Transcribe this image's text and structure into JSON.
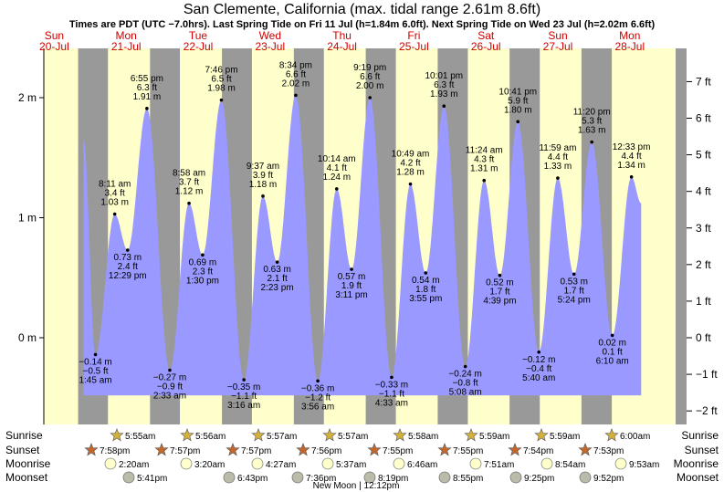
{
  "title": "San Clemente, California (max. tidal range 2.61m 8.6ft)",
  "subtitle": "Times are PDT (UTC −7.0hrs). Last Spring Tide on Fri 11 Jul (h=1.84m 6.0ft). Next Spring Tide on Wed 23 Jul (h=2.02m 6.6ft)",
  "colors": {
    "day_bg": "#ffffcc",
    "night_bg": "#999999",
    "edge_bg": "#999999",
    "tide_fill": "#9999ff",
    "day_label": "#d00000"
  },
  "days": [
    {
      "dow": "Sun",
      "date": "20-Jul"
    },
    {
      "dow": "Mon",
      "date": "21-Jul"
    },
    {
      "dow": "Tue",
      "date": "22-Jul"
    },
    {
      "dow": "Wed",
      "date": "23-Jul"
    },
    {
      "dow": "Thu",
      "date": "24-Jul"
    },
    {
      "dow": "Fri",
      "date": "25-Jul"
    },
    {
      "dow": "Sat",
      "date": "26-Jul"
    },
    {
      "dow": "Sun",
      "date": "27-Jul"
    },
    {
      "dow": "Mon",
      "date": "28-Jul"
    }
  ],
  "chart_data": {
    "type": "area",
    "title": "San Clemente, California (max. tidal range 2.61m 8.6ft)",
    "y_left_unit": "m",
    "y_right_unit": "ft",
    "y_left_ticks": [
      {
        "v": 2,
        "label": "2 m"
      },
      {
        "v": 1,
        "label": "1 m"
      },
      {
        "v": 0,
        "label": "0 m"
      }
    ],
    "y_right_ticks": [
      {
        "v": 7,
        "label": "7 ft"
      },
      {
        "v": 6,
        "label": "6 ft"
      },
      {
        "v": 5,
        "label": "5 ft"
      },
      {
        "v": 4,
        "label": "4 ft"
      },
      {
        "v": 3,
        "label": "3 ft"
      },
      {
        "v": 2,
        "label": "2 ft"
      },
      {
        "v": 1,
        "label": "1 ft"
      },
      {
        "v": 0,
        "label": "0 ft"
      },
      {
        "v": -1,
        "label": "−1 ft"
      },
      {
        "v": -2,
        "label": "−2 ft"
      }
    ],
    "ylim_m": [
      -0.55,
      2.28
    ],
    "start_value_m": 1.65,
    "extremes": [
      {
        "day": 1,
        "time": "1:45 am",
        "h_m": "−0.14 m",
        "h_ft": "−0.5 ft",
        "hours": 1.75,
        "m": -0.14,
        "type": "low"
      },
      {
        "day": 1,
        "time": "8:11 am",
        "h_m": "1.03 m",
        "h_ft": "3.4 ft",
        "hours": 8.18,
        "m": 1.03,
        "type": "high"
      },
      {
        "day": 1,
        "time": "12:29 pm",
        "h_m": "0.73 m",
        "h_ft": "2.4 ft",
        "hours": 12.48,
        "m": 0.73,
        "type": "low"
      },
      {
        "day": 1,
        "time": "6:55 pm",
        "h_m": "1.91 m",
        "h_ft": "6.3 ft",
        "hours": 18.92,
        "m": 1.91,
        "type": "high"
      },
      {
        "day": 2,
        "time": "2:33 am",
        "h_m": "−0.27 m",
        "h_ft": "−0.9 ft",
        "hours": 2.55,
        "m": -0.27,
        "type": "low"
      },
      {
        "day": 2,
        "time": "8:58 am",
        "h_m": "1.12 m",
        "h_ft": "3.7 ft",
        "hours": 8.97,
        "m": 1.12,
        "type": "high"
      },
      {
        "day": 2,
        "time": "1:30 pm",
        "h_m": "0.69 m",
        "h_ft": "2.3 ft",
        "hours": 13.5,
        "m": 0.69,
        "type": "low"
      },
      {
        "day": 2,
        "time": "7:46 pm",
        "h_m": "1.98 m",
        "h_ft": "6.5 ft",
        "hours": 19.77,
        "m": 1.98,
        "type": "high"
      },
      {
        "day": 3,
        "time": "3:16 am",
        "h_m": "−0.35 m",
        "h_ft": "−1.1 ft",
        "hours": 3.27,
        "m": -0.35,
        "type": "low"
      },
      {
        "day": 3,
        "time": "9:37 am",
        "h_m": "1.18 m",
        "h_ft": "3.9 ft",
        "hours": 9.62,
        "m": 1.18,
        "type": "high"
      },
      {
        "day": 3,
        "time": "2:23 pm",
        "h_m": "0.63 m",
        "h_ft": "2.1 ft",
        "hours": 14.38,
        "m": 0.63,
        "type": "low"
      },
      {
        "day": 3,
        "time": "8:34 pm",
        "h_m": "2.02 m",
        "h_ft": "6.6 ft",
        "hours": 20.57,
        "m": 2.02,
        "type": "high"
      },
      {
        "day": 4,
        "time": "3:56 am",
        "h_m": "−0.36 m",
        "h_ft": "−1.2 ft",
        "hours": 3.93,
        "m": -0.36,
        "type": "low"
      },
      {
        "day": 4,
        "time": "10:14 am",
        "h_m": "1.24 m",
        "h_ft": "4.1 ft",
        "hours": 10.23,
        "m": 1.24,
        "type": "high"
      },
      {
        "day": 4,
        "time": "3:11 pm",
        "h_m": "0.57 m",
        "h_ft": "1.9 ft",
        "hours": 15.18,
        "m": 0.57,
        "type": "low"
      },
      {
        "day": 4,
        "time": "9:19 pm",
        "h_m": "2.00 m",
        "h_ft": "6.6 ft",
        "hours": 21.32,
        "m": 2.0,
        "type": "high"
      },
      {
        "day": 5,
        "time": "4:33 am",
        "h_m": "−0.33 m",
        "h_ft": "−1.1 ft",
        "hours": 4.55,
        "m": -0.33,
        "type": "low"
      },
      {
        "day": 5,
        "time": "10:49 am",
        "h_m": "1.28 m",
        "h_ft": "4.2 ft",
        "hours": 10.82,
        "m": 1.28,
        "type": "high"
      },
      {
        "day": 5,
        "time": "3:55 pm",
        "h_m": "0.54 m",
        "h_ft": "1.8 ft",
        "hours": 15.92,
        "m": 0.54,
        "type": "low"
      },
      {
        "day": 5,
        "time": "10:01 pm",
        "h_m": "1.93 m",
        "h_ft": "6.3 ft",
        "hours": 22.02,
        "m": 1.93,
        "type": "high"
      },
      {
        "day": 6,
        "time": "5:08 am",
        "h_m": "−0.24 m",
        "h_ft": "−0.8 ft",
        "hours": 5.13,
        "m": -0.24,
        "type": "low"
      },
      {
        "day": 6,
        "time": "11:24 am",
        "h_m": "1.31 m",
        "h_ft": "4.3 ft",
        "hours": 11.4,
        "m": 1.31,
        "type": "high"
      },
      {
        "day": 6,
        "time": "4:39 pm",
        "h_m": "0.52 m",
        "h_ft": "1.7 ft",
        "hours": 16.65,
        "m": 0.52,
        "type": "low"
      },
      {
        "day": 6,
        "time": "10:41 pm",
        "h_m": "1.80 m",
        "h_ft": "5.9 ft",
        "hours": 22.68,
        "m": 1.8,
        "type": "high"
      },
      {
        "day": 7,
        "time": "5:40 am",
        "h_m": "−0.12 m",
        "h_ft": "−0.4 ft",
        "hours": 5.67,
        "m": -0.12,
        "type": "low"
      },
      {
        "day": 7,
        "time": "11:59 am",
        "h_m": "1.33 m",
        "h_ft": "4.4 ft",
        "hours": 11.98,
        "m": 1.33,
        "type": "high"
      },
      {
        "day": 7,
        "time": "5:24 pm",
        "h_m": "0.53 m",
        "h_ft": "1.7 ft",
        "hours": 17.4,
        "m": 0.53,
        "type": "low"
      },
      {
        "day": 7,
        "time": "11:20 pm",
        "h_m": "1.63 m",
        "h_ft": "5.3 ft",
        "hours": 23.33,
        "m": 1.63,
        "type": "high"
      },
      {
        "day": 8,
        "time": "6:10 am",
        "h_m": "0.02 m",
        "h_ft": "0.1 ft",
        "hours": 6.17,
        "m": 0.02,
        "type": "low"
      },
      {
        "day": 8,
        "time": "12:33 pm",
        "h_m": "1.34 m",
        "h_ft": "4.4 ft",
        "hours": 12.55,
        "m": 1.34,
        "type": "high"
      }
    ],
    "end_value_m": 1.12
  },
  "rows": {
    "sunrise_label": "Sunrise",
    "sunset_label": "Sunset",
    "moonrise_label": "Moonrise",
    "moonset_label": "Moonset",
    "sunrise": [
      {
        "day": 1,
        "time": "5:55am",
        "hours": 5.92
      },
      {
        "day": 2,
        "time": "5:56am",
        "hours": 5.93
      },
      {
        "day": 3,
        "time": "5:57am",
        "hours": 5.95
      },
      {
        "day": 4,
        "time": "5:57am",
        "hours": 5.95
      },
      {
        "day": 5,
        "time": "5:58am",
        "hours": 5.97
      },
      {
        "day": 6,
        "time": "5:59am",
        "hours": 5.98
      },
      {
        "day": 7,
        "time": "5:59am",
        "hours": 5.98
      },
      {
        "day": 8,
        "time": "6:00am",
        "hours": 6.0
      }
    ],
    "sunset": [
      {
        "day": 0,
        "time": "7:58pm",
        "hours": 19.97
      },
      {
        "day": 1,
        "time": "7:57pm",
        "hours": 19.95
      },
      {
        "day": 2,
        "time": "7:57pm",
        "hours": 19.95
      },
      {
        "day": 3,
        "time": "7:56pm",
        "hours": 19.93
      },
      {
        "day": 4,
        "time": "7:55pm",
        "hours": 19.92
      },
      {
        "day": 5,
        "time": "7:55pm",
        "hours": 19.92
      },
      {
        "day": 6,
        "time": "7:54pm",
        "hours": 19.9
      },
      {
        "day": 7,
        "time": "7:53pm",
        "hours": 19.88
      }
    ],
    "moonrise": [
      {
        "day": 1,
        "time": "2:20am"
      },
      {
        "day": 2,
        "time": "3:20am"
      },
      {
        "day": 3,
        "time": "4:27am"
      },
      {
        "day": 4,
        "time": "5:37am"
      },
      {
        "day": 5,
        "time": "6:46am"
      },
      {
        "day": 6,
        "time": "7:51am"
      },
      {
        "day": 7,
        "time": "8:54am"
      },
      {
        "day": 8,
        "time": "9:53am"
      }
    ],
    "moonset": [
      {
        "day": 1,
        "time": "5:41pm"
      },
      {
        "day": 2,
        "time": "6:43pm"
      },
      {
        "day": 3,
        "time": "7:36pm"
      },
      {
        "day": 4,
        "time": "8:19pm"
      },
      {
        "day": 5,
        "time": "8:55pm"
      },
      {
        "day": 6,
        "time": "9:25pm"
      },
      {
        "day": 7,
        "time": "9:52pm"
      }
    ],
    "moon_phase": "New Moon | 12:12pm"
  }
}
